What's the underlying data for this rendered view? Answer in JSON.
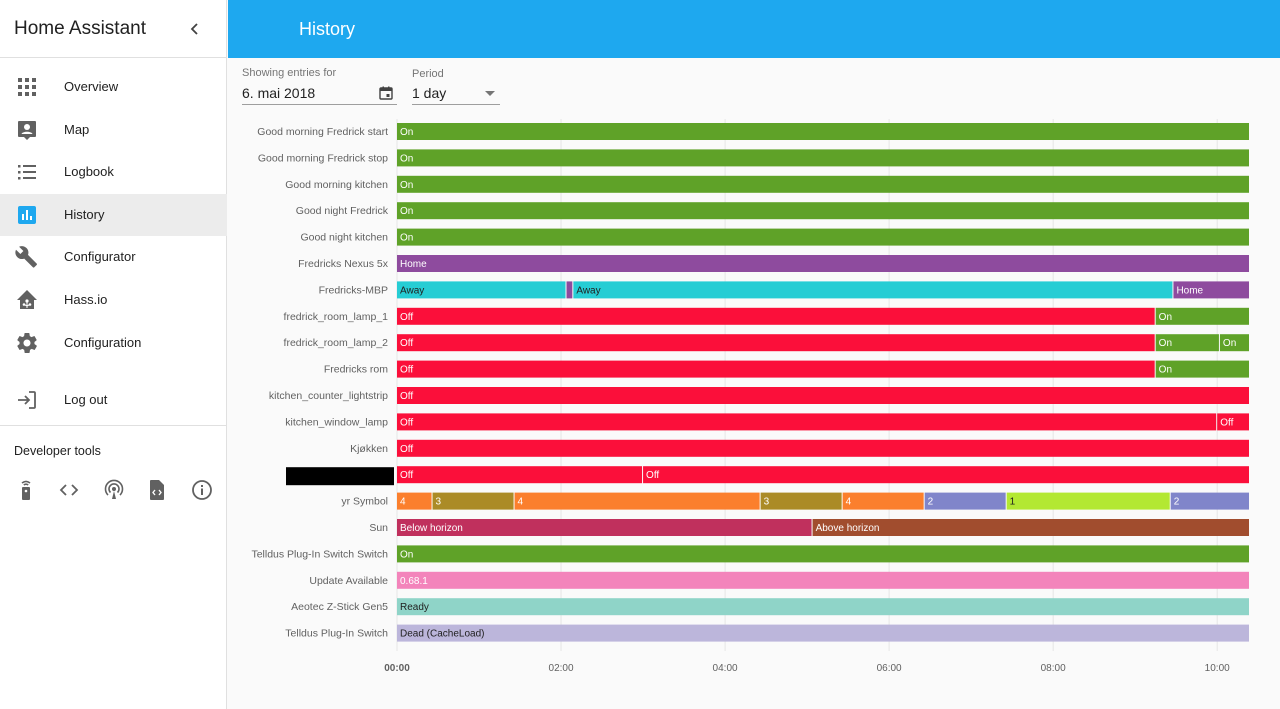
{
  "app": {
    "title": "Home Assistant"
  },
  "sidebar": {
    "items": [
      {
        "label": "Overview",
        "icon": "apps-icon",
        "selected": false
      },
      {
        "label": "Map",
        "icon": "map-pin-icon",
        "selected": false
      },
      {
        "label": "Logbook",
        "icon": "list-icon",
        "selected": false
      },
      {
        "label": "History",
        "icon": "chart-bar-icon",
        "selected": true
      },
      {
        "label": "Configurator",
        "icon": "wrench-icon",
        "selected": false
      },
      {
        "label": "Hass.io",
        "icon": "home-assistant-icon",
        "selected": false
      },
      {
        "label": "Configuration",
        "icon": "gear-icon",
        "selected": false
      }
    ],
    "logout_label": "Log out",
    "dev_tools_title": "Developer tools",
    "dev_tools_icons": [
      "remote-icon",
      "code-icon",
      "broadcast-icon",
      "file-xml-icon",
      "info-icon"
    ]
  },
  "header": {
    "title": "History"
  },
  "controls": {
    "date_label": "Showing entries for",
    "date_value": "6. mai 2018",
    "period_label": "Period",
    "period_value": "1 day"
  },
  "colors": {
    "accent": "#1ea8ef",
    "on": "#5fa228",
    "off": "#fb0f3a",
    "home": "#8e4b9e",
    "away": "#26cdd4",
    "below_horizon": "#c0305d",
    "above_horizon": "#a14d2e",
    "update": "#f384bb",
    "ready": "#8fd4c8",
    "dead": "#bcb6db"
  },
  "chart_data": {
    "type": "timeline",
    "x_range": [
      "00:00",
      "10:24"
    ],
    "x_ticks": [
      "00:00",
      "02:00",
      "04:00",
      "06:00",
      "08:00",
      "10:00"
    ],
    "rows": [
      {
        "label": "Good morning Fredrick start",
        "segments": [
          {
            "start": "00:00",
            "end": "10:24",
            "state": "On",
            "color": "#5fa228"
          }
        ]
      },
      {
        "label": "Good morning Fredrick stop",
        "segments": [
          {
            "start": "00:00",
            "end": "10:24",
            "state": "On",
            "color": "#5fa228"
          }
        ]
      },
      {
        "label": "Good morning kitchen",
        "segments": [
          {
            "start": "00:00",
            "end": "10:24",
            "state": "On",
            "color": "#5fa228"
          }
        ]
      },
      {
        "label": "Good night Fredrick",
        "segments": [
          {
            "start": "00:00",
            "end": "10:24",
            "state": "On",
            "color": "#5fa228"
          }
        ]
      },
      {
        "label": "Good night kitchen",
        "segments": [
          {
            "start": "00:00",
            "end": "10:24",
            "state": "On",
            "color": "#5fa228"
          }
        ]
      },
      {
        "label": "Fredricks Nexus 5x",
        "segments": [
          {
            "start": "00:00",
            "end": "10:24",
            "state": "Home",
            "color": "#8e4b9e"
          }
        ]
      },
      {
        "label": "Fredricks-MBP",
        "segments": [
          {
            "start": "00:00",
            "end": "02:04",
            "state": "Away",
            "color": "#26cdd4",
            "dark": true
          },
          {
            "start": "02:04",
            "end": "02:09",
            "state": "",
            "color": "#8e4b9e"
          },
          {
            "start": "02:09",
            "end": "09:28",
            "state": "Away",
            "color": "#26cdd4",
            "dark": true
          },
          {
            "start": "09:28",
            "end": "10:24",
            "state": "Home",
            "color": "#8e4b9e"
          }
        ]
      },
      {
        "label": "fredrick_room_lamp_1",
        "segments": [
          {
            "start": "00:00",
            "end": "09:15",
            "state": "Off",
            "color": "#fb0f3a"
          },
          {
            "start": "09:15",
            "end": "10:24",
            "state": "On",
            "color": "#5fa228"
          }
        ]
      },
      {
        "label": "fredrick_room_lamp_2",
        "segments": [
          {
            "start": "00:00",
            "end": "09:15",
            "state": "Off",
            "color": "#fb0f3a"
          },
          {
            "start": "09:15",
            "end": "10:02",
            "state": "On",
            "color": "#5fa228"
          },
          {
            "start": "10:02",
            "end": "10:24",
            "state": "On",
            "color": "#5fa228"
          }
        ]
      },
      {
        "label": "Fredricks rom",
        "segments": [
          {
            "start": "00:00",
            "end": "09:15",
            "state": "Off",
            "color": "#fb0f3a"
          },
          {
            "start": "09:15",
            "end": "10:24",
            "state": "On",
            "color": "#5fa228"
          }
        ]
      },
      {
        "label": "kitchen_counter_lightstrip",
        "segments": [
          {
            "start": "00:00",
            "end": "10:24",
            "state": "Off",
            "color": "#fb0f3a"
          }
        ]
      },
      {
        "label": "kitchen_window_lamp",
        "segments": [
          {
            "start": "00:00",
            "end": "10:00",
            "state": "Off",
            "color": "#fb0f3a"
          },
          {
            "start": "10:00",
            "end": "10:24",
            "state": "Off",
            "color": "#fb0f3a"
          }
        ]
      },
      {
        "label": "Kjøkken",
        "segments": [
          {
            "start": "00:00",
            "end": "10:24",
            "state": "Off",
            "color": "#fb0f3a"
          }
        ]
      },
      {
        "label": "",
        "redacted": true,
        "segments": [
          {
            "start": "00:00",
            "end": "03:00",
            "state": "Off",
            "color": "#fb0f3a"
          },
          {
            "start": "03:00",
            "end": "10:24",
            "state": "Off",
            "color": "#fb0f3a"
          }
        ]
      },
      {
        "label": "yr Symbol",
        "segments": [
          {
            "start": "00:00",
            "end": "00:26",
            "state": "4",
            "color": "#fb7f2d"
          },
          {
            "start": "00:26",
            "end": "01:26",
            "state": "3",
            "color": "#ab8b26"
          },
          {
            "start": "01:26",
            "end": "04:26",
            "state": "4",
            "color": "#fb7f2d"
          },
          {
            "start": "04:26",
            "end": "05:26",
            "state": "3",
            "color": "#ab8b26"
          },
          {
            "start": "05:26",
            "end": "06:26",
            "state": "4",
            "color": "#fb7f2d"
          },
          {
            "start": "06:26",
            "end": "07:26",
            "state": "2",
            "color": "#8085ca"
          },
          {
            "start": "07:26",
            "end": "09:26",
            "state": "1",
            "color": "#b3e832",
            "dark": true
          },
          {
            "start": "09:26",
            "end": "10:24",
            "state": "2",
            "color": "#8085ca"
          }
        ]
      },
      {
        "label": "Sun",
        "segments": [
          {
            "start": "00:00",
            "end": "05:04",
            "state": "Below horizon",
            "color": "#c0305d"
          },
          {
            "start": "05:04",
            "end": "10:24",
            "state": "Above horizon",
            "color": "#a14d2e"
          }
        ]
      },
      {
        "label": "Telldus Plug-In Switch Switch",
        "segments": [
          {
            "start": "00:00",
            "end": "10:24",
            "state": "On",
            "color": "#5fa228"
          }
        ]
      },
      {
        "label": "Update Available",
        "segments": [
          {
            "start": "00:00",
            "end": "10:24",
            "state": "0.68.1",
            "color": "#f384bb"
          }
        ]
      },
      {
        "label": "Aeotec Z-Stick Gen5",
        "segments": [
          {
            "start": "00:00",
            "end": "10:24",
            "state": "Ready",
            "color": "#8fd4c8",
            "dark": true
          }
        ]
      },
      {
        "label": "Telldus Plug-In Switch",
        "segments": [
          {
            "start": "00:00",
            "end": "10:24",
            "state": "Dead (CacheLoad)",
            "color": "#bcb6db",
            "dark": true
          }
        ]
      }
    ]
  }
}
